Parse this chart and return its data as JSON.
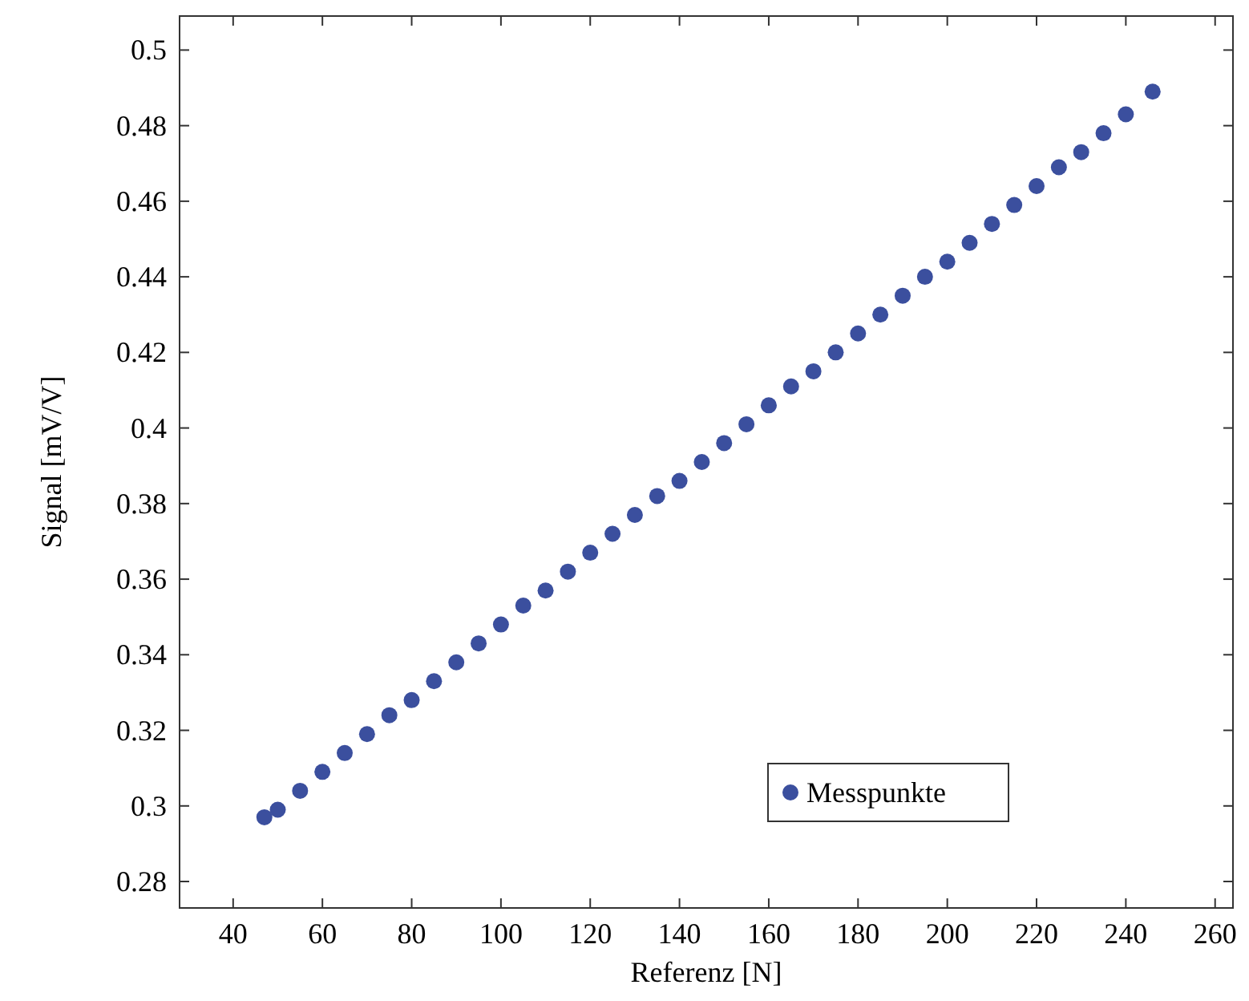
{
  "chart_data": {
    "type": "scatter",
    "xlabel": "Referenz [N]",
    "ylabel": "Signal [mV/V]",
    "x": [
      47,
      50,
      55,
      60,
      65,
      70,
      75,
      80,
      85,
      90,
      95,
      100,
      105,
      110,
      115,
      120,
      125,
      130,
      135,
      140,
      145,
      150,
      155,
      160,
      165,
      170,
      175,
      180,
      185,
      190,
      195,
      200,
      205,
      210,
      215,
      220,
      225,
      230,
      235,
      240,
      246
    ],
    "series": [
      {
        "name": "Messpunkte",
        "color": "#3b4f9e",
        "values": [
          0.297,
          0.299,
          0.304,
          0.309,
          0.314,
          0.319,
          0.324,
          0.328,
          0.333,
          0.338,
          0.343,
          0.348,
          0.353,
          0.357,
          0.362,
          0.367,
          0.372,
          0.377,
          0.382,
          0.386,
          0.391,
          0.396,
          0.401,
          0.406,
          0.411,
          0.415,
          0.42,
          0.425,
          0.43,
          0.435,
          0.44,
          0.444,
          0.449,
          0.454,
          0.459,
          0.464,
          0.469,
          0.473,
          0.478,
          0.483,
          0.489
        ]
      }
    ],
    "xlim": [
      28,
      264
    ],
    "ylim": [
      0.273,
      0.509
    ],
    "xticks": [
      40,
      60,
      80,
      100,
      120,
      140,
      160,
      180,
      200,
      220,
      240,
      260
    ],
    "yticks": [
      0.28,
      0.3,
      0.32,
      0.34,
      0.36,
      0.38,
      0.4,
      0.42,
      0.44,
      0.46,
      0.48,
      0.5
    ],
    "grid": false,
    "legend": "bottom right",
    "marker": "circle"
  }
}
